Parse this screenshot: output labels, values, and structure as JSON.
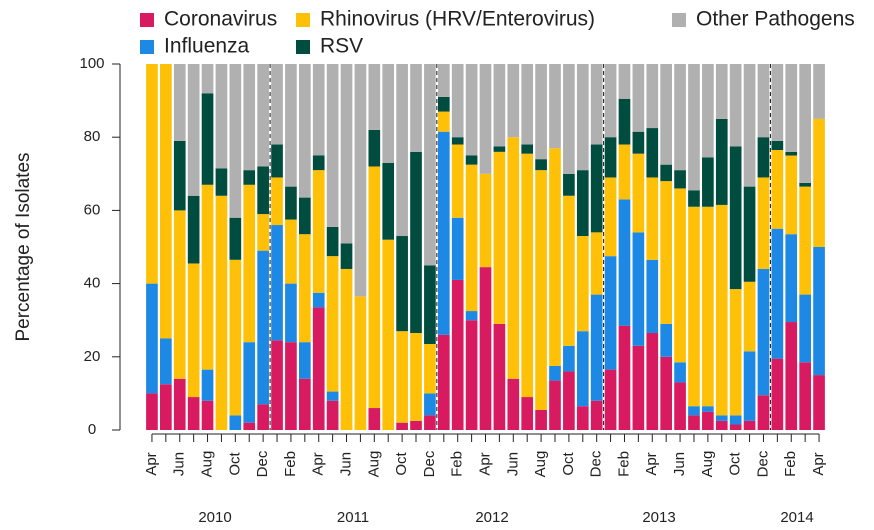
{
  "chart_data": {
    "type": "stacked_bar",
    "y_label": "Percentage of Isolates",
    "categories": [
      "Apr",
      null,
      "Jun",
      null,
      "Aug",
      null,
      "Oct",
      null,
      "Dec",
      null,
      "Feb",
      null,
      "Apr",
      null,
      "Jun",
      null,
      "Aug",
      null,
      "Oct",
      null,
      "Dec",
      null,
      "Feb",
      null,
      "Apr",
      null,
      "Jun",
      null,
      "Aug",
      null,
      "Oct",
      null,
      "Dec",
      null,
      "Feb",
      null,
      "Apr",
      null,
      "Jun",
      null,
      "Aug",
      null,
      "Oct",
      null,
      "Dec",
      null,
      "Feb",
      null,
      "Apr"
    ],
    "year_labels": [
      "2010",
      "2011",
      "2012",
      "2013",
      "2014"
    ],
    "series": [
      {
        "name": "Coronavirus",
        "color": "#d81b60",
        "values": [
          10,
          12.5,
          14,
          9,
          8,
          0,
          0,
          2,
          7,
          24.5,
          24,
          14,
          33.5,
          8,
          0,
          0,
          6,
          0,
          2,
          2.5,
          4,
          26,
          41,
          30,
          44.5,
          29,
          14,
          9,
          5.5,
          13.5,
          16,
          6.5,
          8,
          16.5,
          28.5,
          23,
          26.5,
          20,
          13,
          4,
          5,
          2.5,
          1.5,
          2.5,
          9.5,
          19.5,
          29.5,
          18.5,
          15
        ]
      },
      {
        "name": "Influenza",
        "color": "#1e88e5",
        "values": [
          30,
          12.5,
          0,
          0,
          8.5,
          0,
          4,
          22,
          42,
          31.5,
          16,
          10,
          4,
          2.5,
          0,
          0,
          0,
          0,
          0,
          0,
          6,
          55.5,
          17,
          2.5,
          0,
          0,
          0,
          0,
          0,
          4,
          7,
          20.5,
          29,
          31,
          34.5,
          31,
          20,
          9,
          5.5,
          2.5,
          1.5,
          1.5,
          2.5,
          19,
          34.5,
          35.5,
          24,
          18.5,
          35
        ]
      },
      {
        "name": "Rhinovirus (HRV/Enterovirus)",
        "color": "#ffc107",
        "values": [
          60,
          75,
          46,
          36.5,
          50.5,
          64,
          42.5,
          43,
          10,
          13,
          17.5,
          29.5,
          33.5,
          37,
          44,
          36.5,
          66,
          52,
          25,
          24,
          13.5,
          5.5,
          20,
          40,
          25.5,
          47,
          66,
          66.5,
          65.5,
          59.5,
          41,
          26,
          17,
          21.5,
          15,
          21.5,
          22.5,
          39,
          47.5,
          54.5,
          54.5,
          57.5,
          34.5,
          19,
          25,
          21.5,
          21.5,
          29.5,
          35
        ]
      },
      {
        "name": "RSV",
        "color": "#004d40",
        "values": [
          0,
          0,
          19,
          18.5,
          25,
          7.5,
          11.5,
          4,
          13,
          9,
          9,
          10,
          4,
          8,
          7,
          0,
          10,
          21,
          26,
          49.5,
          21.5,
          4,
          2,
          2.5,
          0,
          1.5,
          0,
          2.5,
          3,
          0,
          6,
          18,
          24,
          11,
          12.5,
          6,
          13.5,
          4.5,
          5,
          4.5,
          13.5,
          23.5,
          39,
          26,
          11,
          2.5,
          1,
          1,
          0
        ]
      },
      {
        "name": "Other Pathogens",
        "color": "#b0b0b0",
        "values": [
          0,
          0,
          21,
          36,
          8,
          28.5,
          42,
          29,
          28,
          22,
          33.5,
          36.5,
          25,
          44.5,
          49,
          63.5,
          18,
          27,
          47,
          24,
          55,
          9,
          20,
          25,
          30,
          22.5,
          20,
          22,
          26,
          23,
          30,
          29,
          22,
          20,
          9.5,
          18.5,
          17.5,
          27.5,
          29,
          34.5,
          25.5,
          15,
          22.5,
          33.5,
          20,
          21,
          24,
          32.5,
          15
        ]
      }
    ],
    "ylim": [
      0,
      100
    ],
    "yticks": [
      0,
      20,
      40,
      60,
      80,
      100
    ]
  }
}
